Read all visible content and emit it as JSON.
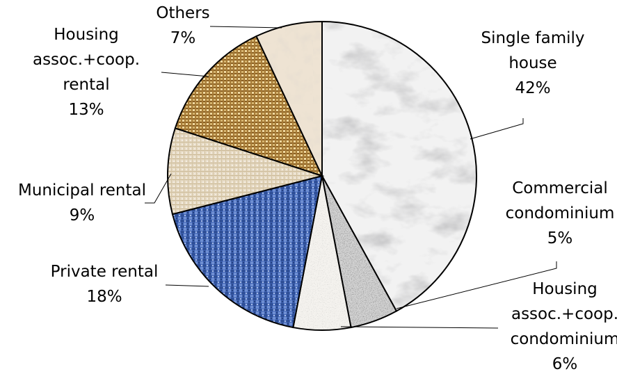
{
  "chart_data": {
    "type": "pie",
    "title": "",
    "start_angle_deg": 0,
    "direction": "clockwise",
    "slices": [
      {
        "label_lines": [
          "Single family",
          "house"
        ],
        "value": 42,
        "value_text": "42%",
        "pattern": "marble"
      },
      {
        "label_lines": [
          "Commercial",
          "condominium"
        ],
        "value": 5,
        "value_text": "5%",
        "pattern": "granite"
      },
      {
        "label_lines": [
          "Housing",
          "assoc.+coop.",
          "condominium"
        ],
        "value": 6,
        "value_text": "6%",
        "pattern": "speckle"
      },
      {
        "label_lines": [
          "Private rental"
        ],
        "value": 18,
        "value_text": "18%",
        "pattern": "blue-weave"
      },
      {
        "label_lines": [
          "Municipal rental"
        ],
        "value": 9,
        "value_text": "9%",
        "pattern": "canvas"
      },
      {
        "label_lines": [
          "Housing",
          "assoc.+coop.",
          "rental"
        ],
        "value": 13,
        "value_text": "13%",
        "pattern": "wicker"
      },
      {
        "label_lines": [
          "Others"
        ],
        "value": 7,
        "value_text": "7%",
        "pattern": "paper"
      }
    ],
    "colors": {
      "marble": "#ecebeb",
      "granite": "#8a8a8a",
      "speckle": "#f0eee9",
      "blue-weave": "#4a6fbf",
      "canvas": "#e3d6bf",
      "wicker": "#c9a45e",
      "paper": "#e8dccb",
      "outline": "#000000"
    }
  }
}
